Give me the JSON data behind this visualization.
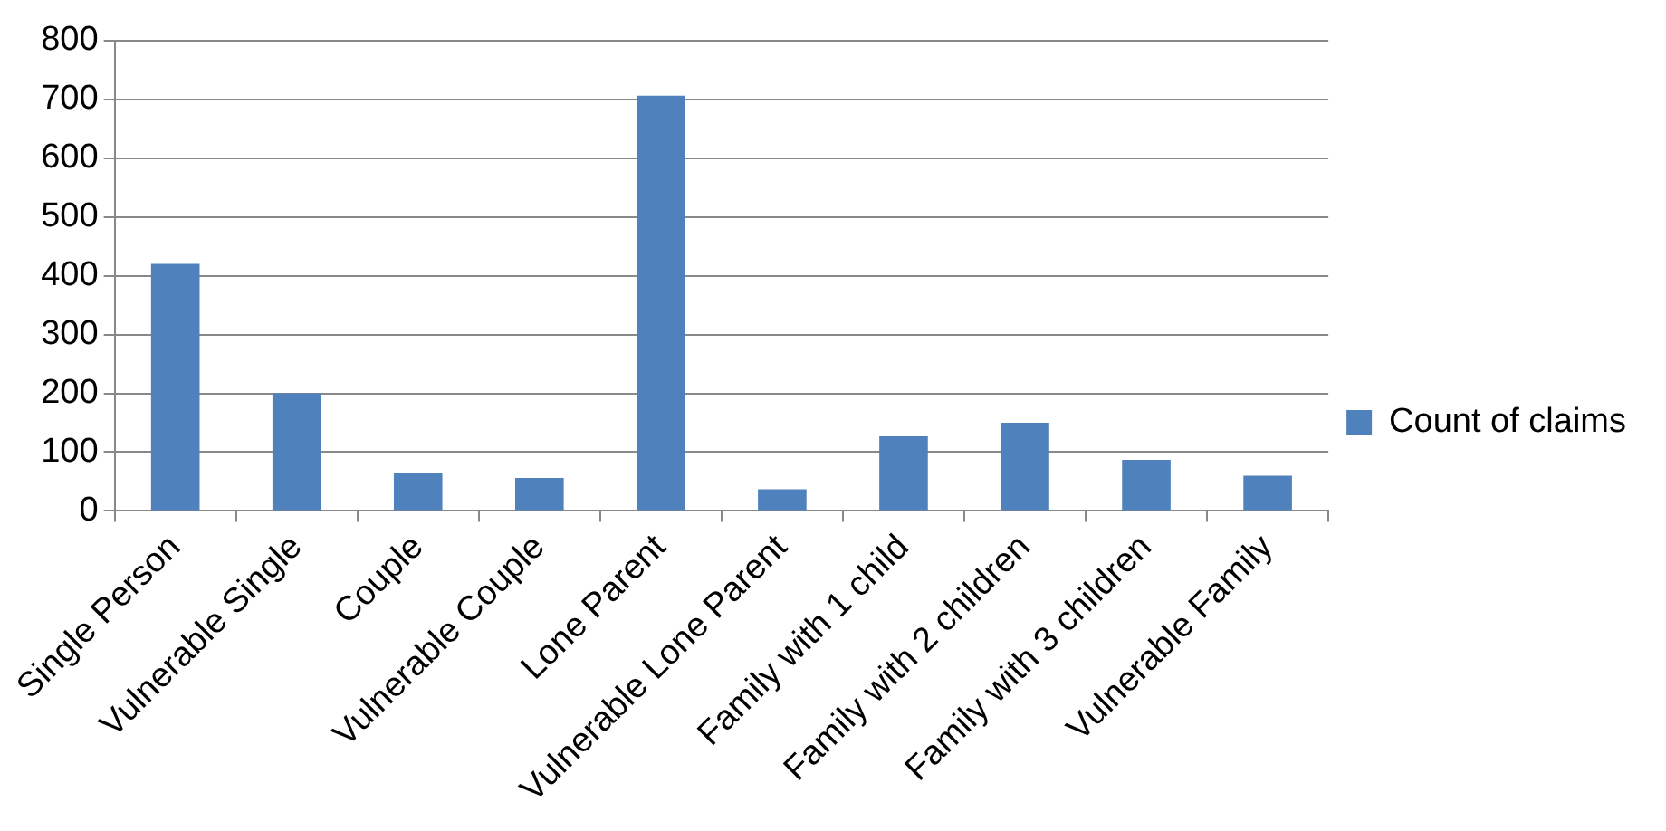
{
  "chart_data": {
    "type": "bar",
    "categories": [
      "Single Person",
      "Vulnerable Single",
      "Couple",
      "Vulnerable Couple",
      "Lone Parent",
      "Vulnerable Lone Parent",
      "Family with 1 child",
      "Family with 2 children",
      "Family with 3 children",
      "Vulnerable Family"
    ],
    "series": [
      {
        "name": "Count of claims",
        "color": "#4f81bd",
        "values": [
          420,
          200,
          64,
          56,
          706,
          37,
          127,
          150,
          87,
          60
        ]
      }
    ],
    "ylim": [
      0,
      800
    ],
    "yticks": [
      0,
      100,
      200,
      300,
      400,
      500,
      600,
      700,
      800
    ],
    "grid": "y",
    "legend": "right"
  }
}
